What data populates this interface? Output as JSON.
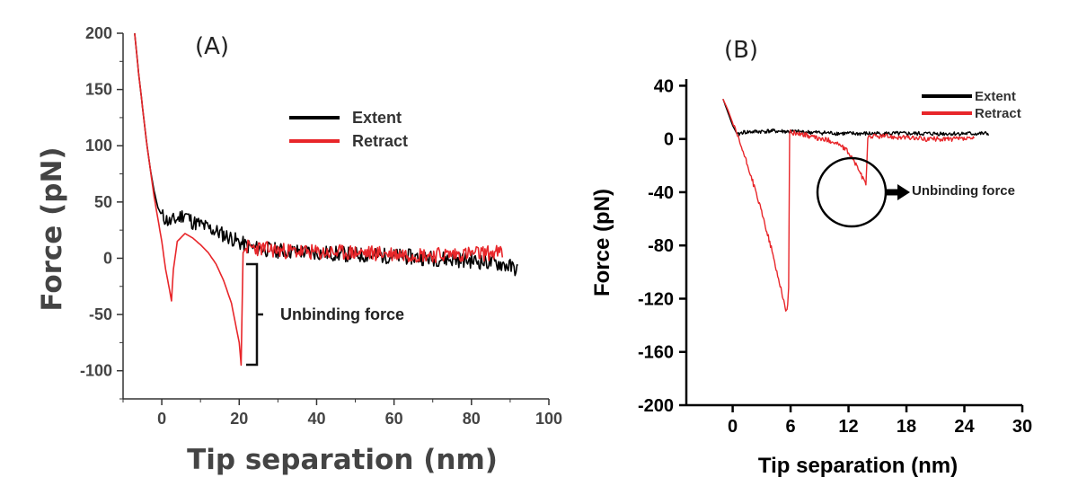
{
  "chart_data": [
    {
      "type": "line",
      "panel_label": "(A)",
      "title": "",
      "xlabel": "Tip separation (nm)",
      "ylabel": "Force (pN)",
      "xlim": [
        -10,
        100
      ],
      "ylim": [
        -125,
        200
      ],
      "xticks": [
        0,
        20,
        40,
        60,
        80,
        100
      ],
      "yticks": [
        -100,
        -50,
        0,
        50,
        100,
        150,
        200
      ],
      "legend_position": "top-right",
      "series": [
        {
          "name": "Extent",
          "color": "#000000",
          "points": [
            [
              -7,
              200
            ],
            [
              -6,
              165
            ],
            [
              -5,
              135
            ],
            [
              -4,
              105
            ],
            [
              -3,
              80
            ],
            [
              -2,
              60
            ],
            [
              -1,
              45
            ],
            [
              0,
              38
            ],
            [
              2,
              32
            ],
            [
              4,
              35
            ],
            [
              6,
              40
            ],
            [
              8,
              32
            ],
            [
              10,
              30
            ],
            [
              12,
              27
            ],
            [
              14,
              24
            ],
            [
              16,
              21
            ],
            [
              18,
              18
            ],
            [
              20,
              14
            ],
            [
              22,
              11
            ],
            [
              24,
              9
            ],
            [
              30,
              7
            ],
            [
              40,
              5
            ],
            [
              50,
              3
            ],
            [
              60,
              2
            ],
            [
              70,
              0
            ],
            [
              80,
              -2
            ],
            [
              88,
              -5
            ],
            [
              92,
              -10
            ]
          ]
        },
        {
          "name": "Retract",
          "color": "#e8262a",
          "points": [
            [
              -7,
              200
            ],
            [
              -6,
              165
            ],
            [
              -5,
              135
            ],
            [
              -4,
              105
            ],
            [
              -3,
              80
            ],
            [
              -2,
              55
            ],
            [
              -1,
              35
            ],
            [
              0,
              15
            ],
            [
              1,
              -10
            ],
            [
              2,
              -28
            ],
            [
              2.5,
              -38
            ],
            [
              3,
              -10
            ],
            [
              4,
              15
            ],
            [
              6,
              22
            ],
            [
              8,
              18
            ],
            [
              10,
              12
            ],
            [
              12,
              5
            ],
            [
              14,
              -5
            ],
            [
              16,
              -20
            ],
            [
              18,
              -40
            ],
            [
              20,
              -75
            ],
            [
              20.5,
              -95
            ],
            [
              21,
              5
            ],
            [
              22,
              10
            ],
            [
              30,
              7
            ],
            [
              40,
              5
            ],
            [
              50,
              5
            ],
            [
              60,
              4
            ],
            [
              70,
              3
            ],
            [
              80,
              4
            ],
            [
              88,
              5
            ]
          ]
        }
      ],
      "annotations": [
        {
          "text": "Unbinding force",
          "x": 22,
          "y_from": 10,
          "y_to": -100
        }
      ]
    },
    {
      "type": "line",
      "panel_label": "(B)",
      "title": "",
      "xlabel": "Tip separation (nm)",
      "ylabel": "Force (pN)",
      "xlim": [
        -4.8,
        30
      ],
      "ylim": [
        -200,
        45
      ],
      "xticks": [
        0,
        6,
        12,
        18,
        24,
        30
      ],
      "yticks": [
        -200,
        -160,
        -120,
        -80,
        -40,
        0,
        40
      ],
      "legend_position": "top-right",
      "series": [
        {
          "name": "Extent",
          "color": "#000000",
          "points": [
            [
              -1,
              30
            ],
            [
              0,
              10
            ],
            [
              0.5,
              3
            ],
            [
              1,
              5
            ],
            [
              4,
              6
            ],
            [
              8,
              5
            ],
            [
              12,
              4
            ],
            [
              16,
              4
            ],
            [
              20,
              4
            ],
            [
              24,
              4
            ],
            [
              26.5,
              4
            ]
          ]
        },
        {
          "name": "Retract",
          "color": "#e8262a",
          "points": [
            [
              -1,
              30
            ],
            [
              -0.5,
              22
            ],
            [
              0,
              12
            ],
            [
              0.5,
              2
            ],
            [
              1,
              -8
            ],
            [
              2,
              -30
            ],
            [
              3,
              -55
            ],
            [
              4,
              -82
            ],
            [
              4.5,
              -98
            ],
            [
              5,
              -112
            ],
            [
              5.3,
              -122
            ],
            [
              5.5,
              -130
            ],
            [
              5.7,
              -125
            ],
            [
              5.8,
              -112
            ],
            [
              5.9,
              5
            ],
            [
              7,
              4
            ],
            [
              8,
              2
            ],
            [
              9,
              0
            ],
            [
              10,
              -1
            ],
            [
              11,
              -4
            ],
            [
              12,
              -10
            ],
            [
              13,
              -22
            ],
            [
              13.8,
              -35
            ],
            [
              14,
              2
            ],
            [
              16,
              2
            ],
            [
              20,
              0
            ],
            [
              25,
              0
            ]
          ]
        }
      ],
      "annotations": [
        {
          "text": "Unbinding force",
          "x": 13,
          "y": -40
        }
      ]
    }
  ]
}
